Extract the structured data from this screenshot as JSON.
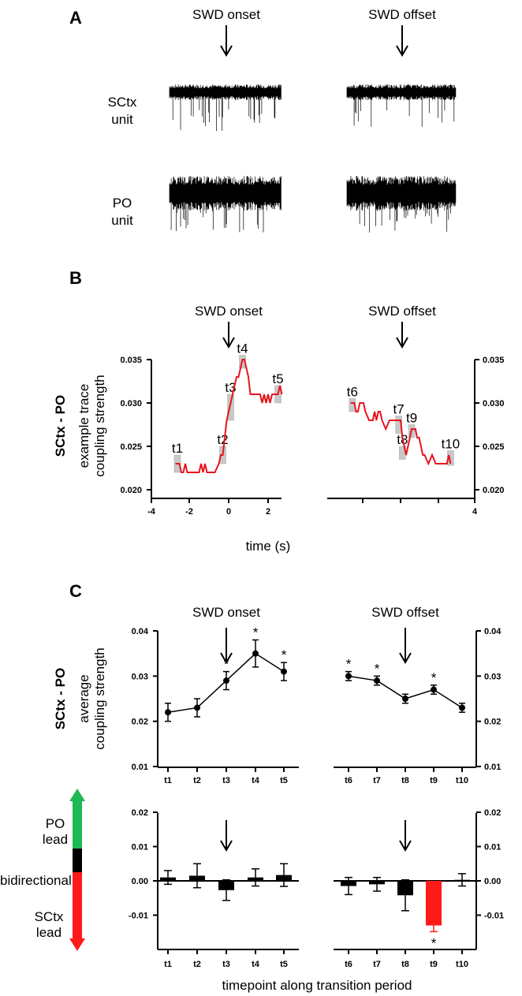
{
  "panels": {
    "a": "A",
    "b": "B",
    "c": "C"
  },
  "events": {
    "onset": "SWD onset",
    "offset": "SWD offset"
  },
  "panel_a": {
    "rows": [
      {
        "line1": "SCtx",
        "line2": "unit"
      },
      {
        "line1": "PO",
        "line2": "unit"
      }
    ]
  },
  "row_label": "SCtx - PO",
  "legend_lead": {
    "po_lead_1": "PO",
    "po_lead_2": "lead",
    "bidirectional": "bidirectional",
    "sctx_lead_1": "SCtx",
    "sctx_lead_2": "lead",
    "colors": {
      "po": "#1db954",
      "bi": "#000000",
      "sctx": "#ff1a1a"
    }
  },
  "chart_data": [
    {
      "type": "line",
      "title": "example trace coupling strength",
      "ylabel_1": "example trace",
      "ylabel_2": "coupling strength",
      "xlabel": "time (s)",
      "ylim": [
        0.02,
        0.035
      ],
      "yticks": [
        "0.035",
        "0.030",
        "0.025",
        "0.020"
      ],
      "yticks_right": [
        "0.035",
        "0.030",
        "0.025",
        "0.020"
      ],
      "xticks": [
        "-4",
        "-2",
        "0",
        "2",
        "4"
      ],
      "color": "#e8141b",
      "onset_trace": {
        "x": [
          -2.7,
          -2.5,
          -2.4,
          -2.3,
          -2.2,
          -2.1,
          -1.9,
          -1.7,
          -1.5,
          -1.4,
          -1.3,
          -1.2,
          -1.1,
          -1.0,
          -0.9,
          -0.7,
          -0.5,
          -0.4,
          -0.3,
          -0.2,
          -0.1,
          0.0,
          0.1,
          0.2,
          0.3,
          0.4,
          0.5,
          0.6,
          0.7,
          0.8,
          0.9,
          1.0,
          1.1,
          1.3,
          1.6,
          1.7,
          1.8,
          1.9,
          2.0,
          2.1,
          2.2,
          2.3,
          2.4,
          2.5,
          2.6,
          2.7
        ],
        "y": [
          0.023,
          0.023,
          0.022,
          0.022,
          0.023,
          0.022,
          0.022,
          0.022,
          0.022,
          0.023,
          0.022,
          0.023,
          0.022,
          0.022,
          0.022,
          0.022,
          0.023,
          0.024,
          0.024,
          0.026,
          0.028,
          0.029,
          0.03,
          0.031,
          0.032,
          0.033,
          0.033,
          0.034,
          0.035,
          0.035,
          0.034,
          0.033,
          0.031,
          0.031,
          0.031,
          0.03,
          0.031,
          0.03,
          0.031,
          0.03,
          0.031,
          0.031,
          0.031,
          0.031,
          0.032,
          0.031
        ]
      },
      "offset_trace": {
        "x": [
          -2.7,
          -2.5,
          -2.4,
          -2.3,
          -2.2,
          -2.0,
          -1.9,
          -1.7,
          -1.5,
          -1.4,
          -1.3,
          -1.2,
          -1.1,
          -1.0,
          -0.8,
          -0.6,
          -0.4,
          -0.2,
          0.0,
          0.1,
          0.2,
          0.3,
          0.4,
          0.5,
          0.6,
          0.8,
          0.9,
          1.0,
          1.1,
          1.2,
          1.3,
          1.5,
          1.7,
          1.9,
          2.2,
          2.5,
          2.6,
          2.7
        ],
        "y": [
          0.03,
          0.03,
          0.029,
          0.029,
          0.03,
          0.03,
          0.029,
          0.028,
          0.028,
          0.029,
          0.028,
          0.029,
          0.029,
          0.028,
          0.027,
          0.028,
          0.028,
          0.028,
          0.028,
          0.026,
          0.025,
          0.024,
          0.025,
          0.026,
          0.027,
          0.027,
          0.026,
          0.026,
          0.025,
          0.024,
          0.024,
          0.023,
          0.024,
          0.023,
          0.023,
          0.023,
          0.024,
          0.023
        ]
      },
      "markers": [
        {
          "label": "t1",
          "x": -2.6,
          "lo": 0.022,
          "hi": 0.024
        },
        {
          "label": "t2",
          "x": -0.3,
          "lo": 0.023,
          "hi": 0.025
        },
        {
          "label": "t3",
          "x": 0.1,
          "lo": 0.028,
          "hi": 0.031
        },
        {
          "label": "t4",
          "x": 0.7,
          "lo": 0.034,
          "hi": 0.0355
        },
        {
          "label": "t5",
          "x": 2.5,
          "lo": 0.03,
          "hi": 0.032
        },
        {
          "label": "t6",
          "x": -2.6,
          "lo": 0.029,
          "hi": 0.0305
        },
        {
          "label": "t7",
          "x": -0.1,
          "lo": 0.0265,
          "hi": 0.0285
        },
        {
          "label": "t8",
          "x": 0.1,
          "lo": 0.0235,
          "hi": 0.025
        },
        {
          "label": "t9",
          "x": 0.6,
          "lo": 0.026,
          "hi": 0.0275
        },
        {
          "label": "t10",
          "x": 2.7,
          "lo": 0.0228,
          "hi": 0.0245
        }
      ]
    },
    {
      "type": "line",
      "ylabel_1": "average",
      "ylabel_2": "coupling strength",
      "ylim": [
        0.01,
        0.04
      ],
      "yticks": [
        "0.04",
        "0.03",
        "0.02",
        "0.01"
      ],
      "categories": [
        "t1",
        "t2",
        "t3",
        "t4",
        "t5",
        "t6",
        "t7",
        "t8",
        "t9",
        "t10"
      ],
      "values": [
        0.022,
        0.023,
        0.029,
        0.035,
        0.031,
        0.03,
        0.029,
        0.025,
        0.027,
        0.023
      ],
      "errors": [
        0.002,
        0.002,
        0.002,
        0.003,
        0.002,
        0.001,
        0.001,
        0.001,
        0.001,
        0.001
      ],
      "significant": [
        false,
        false,
        true,
        true,
        true,
        true,
        true,
        false,
        true,
        false
      ],
      "star": "*"
    },
    {
      "type": "bar",
      "xlabel": "timepoint along transition period",
      "ylim": [
        -0.02,
        0.02
      ],
      "yticks": [
        "0.02",
        "0.01",
        "0.00",
        "-0.01"
      ],
      "categories": [
        "t1",
        "t2",
        "t3",
        "t4",
        "t5",
        "t6",
        "t7",
        "t8",
        "t9",
        "t10"
      ],
      "values": [
        0.001,
        0.0015,
        -0.0027,
        0.001,
        0.0017,
        -0.0015,
        -0.001,
        -0.0042,
        -0.013,
        0.0003
      ],
      "errors": [
        0.002,
        0.0035,
        0.003,
        0.0025,
        0.0033,
        0.0025,
        0.002,
        0.0045,
        0.0018,
        0.0018
      ],
      "significant": [
        false,
        false,
        false,
        false,
        false,
        false,
        false,
        false,
        true,
        false
      ],
      "colors": {
        "normal": "#000000",
        "significant": "#ff1a1a"
      },
      "star": "*"
    }
  ]
}
